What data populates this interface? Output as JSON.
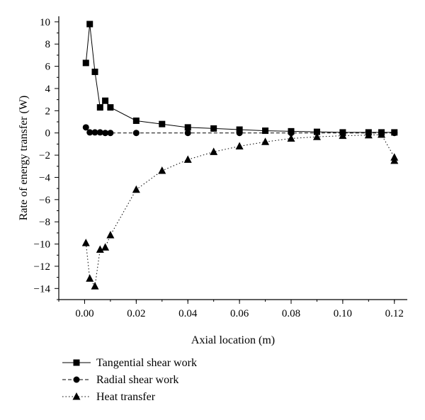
{
  "chart_data": {
    "type": "line",
    "title": "",
    "xlabel": "Axial location (m)",
    "ylabel": "Rate of energy transfer (W)",
    "xlim": [
      -0.01,
      0.125
    ],
    "ylim": [
      -15,
      10.5
    ],
    "xticks": [
      0.0,
      0.02,
      0.04,
      0.06,
      0.08,
      0.1,
      0.12
    ],
    "xtick_labels": [
      "0.00",
      "0.02",
      "0.04",
      "0.06",
      "0.08",
      "0.10",
      "0.12"
    ],
    "yticks": [
      -14,
      -12,
      -10,
      -8,
      -6,
      -4,
      -2,
      0,
      2,
      4,
      6,
      8,
      10
    ],
    "ytick_labels": [
      "−14",
      "−12",
      "−10",
      "−8",
      "−6",
      "−4",
      "−2",
      "0",
      "2",
      "4",
      "6",
      "8",
      "10"
    ],
    "grid": false,
    "legend_position": "below",
    "series": [
      {
        "name": "Tangential shear work",
        "marker": "square",
        "line": "solid",
        "x": [
          0.0005,
          0.002,
          0.004,
          0.006,
          0.008,
          0.01,
          0.02,
          0.03,
          0.04,
          0.05,
          0.06,
          0.07,
          0.08,
          0.09,
          0.1,
          0.11,
          0.115,
          0.12
        ],
        "y": [
          6.3,
          9.8,
          5.5,
          2.3,
          2.9,
          2.3,
          1.1,
          0.8,
          0.5,
          0.4,
          0.3,
          0.2,
          0.15,
          0.1,
          0.05,
          0.05,
          0.05,
          0.05
        ]
      },
      {
        "name": "Radial shear work",
        "marker": "circle",
        "line": "dashed",
        "x": [
          0.0005,
          0.002,
          0.004,
          0.006,
          0.008,
          0.01,
          0.02,
          0.04,
          0.06,
          0.08,
          0.1,
          0.12
        ],
        "y": [
          0.5,
          0.05,
          0.05,
          0.05,
          0.0,
          0.0,
          0.0,
          0.0,
          0.0,
          0.0,
          0.0,
          0.0
        ]
      },
      {
        "name": "Heat transfer",
        "marker": "triangle",
        "line": "dotted",
        "x": [
          0.0005,
          0.002,
          0.004,
          0.006,
          0.008,
          0.01,
          0.02,
          0.03,
          0.04,
          0.05,
          0.06,
          0.07,
          0.08,
          0.09,
          0.1,
          0.11,
          0.115,
          0.12,
          0.12
        ],
        "y": [
          -9.9,
          -13.1,
          -13.8,
          -10.5,
          -10.3,
          -9.2,
          -5.1,
          -3.4,
          -2.4,
          -1.7,
          -1.2,
          -0.8,
          -0.5,
          -0.35,
          -0.25,
          -0.2,
          -0.15,
          -2.2,
          -2.5
        ]
      }
    ]
  }
}
